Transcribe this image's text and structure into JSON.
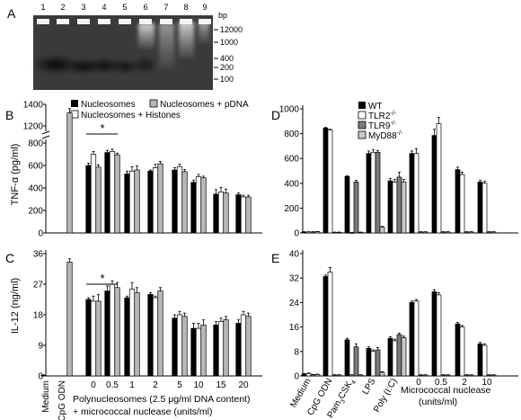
{
  "panel_labels": [
    "A",
    "B",
    "C",
    "D",
    "E"
  ],
  "colors": {
    "black": "#000000",
    "white": "#ffffff",
    "gray": "#b8b8b8",
    "dark_gray": "#7a7a7a",
    "light_gray": "#c9c9c9",
    "gel_background": "#3a3a3a"
  },
  "gel": {
    "lane_numbers": [
      "1",
      "2",
      "3",
      "4",
      "5",
      "6",
      "7",
      "8",
      "9"
    ],
    "unit_label": "bp",
    "marker_labels": [
      "12000",
      "1000",
      "400",
      "200",
      "100"
    ]
  },
  "legend_b": {
    "nucleosomes": "Nucleosomes",
    "nucleosomes_pdna": "Nucleosomes + pDNA",
    "nucleosomes_histones": "Nucleosomes + Histones"
  },
  "legend_d": {
    "wt": "WT",
    "tlr2": "TLR2",
    "tlr9": "TLR9",
    "myd88": "MyD88",
    "ko_superscript": "-/-"
  },
  "significance_marker": "*",
  "left_x_axis": {
    "medium": "Medium",
    "cpg": "CpG ODN",
    "doses": [
      "0",
      "0.5",
      "1",
      "2",
      "5",
      "10",
      "15",
      "20"
    ],
    "caption_line1": "Polynucleosomes (2.5 μg/ml DNA content)",
    "caption_line2": "+ micrococcal nuclease (units/ml)"
  },
  "right_x_axis": {
    "medium": "Medium",
    "cpg": "CpG ODN",
    "pam_prefix": "Pam",
    "pam_sub": "3",
    "pam_suffix": "CSK",
    "pam_sub2": "4",
    "lps": "LPS",
    "polyic": "Poly (I:C)",
    "doses": [
      "0",
      "0.5",
      "2",
      "10"
    ],
    "caption_line1": "Micrococcal nuclease",
    "caption_line2": "(units/ml)"
  },
  "chart_data": [
    {
      "panel": "B",
      "type": "bar",
      "ylabel_prefix": "TNF-",
      "ylabel_greek": "α",
      "ylabel_suffix": " (pg/ml)",
      "ylim": [
        0,
        800
      ],
      "yticks": [
        0,
        200,
        400,
        600,
        800
      ],
      "axis_break": true,
      "upper_ticks": [
        1200,
        1400
      ],
      "categories": [
        "Medium",
        "CpG ODN",
        "0",
        "0.5",
        "1",
        "2",
        "5",
        "10",
        "15",
        "20"
      ],
      "series": [
        {
          "name": "Nucleosomes",
          "values": [
            null,
            null,
            600,
            715,
            525,
            550,
            560,
            450,
            345,
            340
          ],
          "errors": [
            null,
            null,
            20,
            20,
            25,
            10,
            20,
            20,
            40,
            15
          ]
        },
        {
          "name": "Nucleosomes + Histones",
          "values": [
            null,
            null,
            700,
            725,
            550,
            580,
            590,
            500,
            365,
            320
          ],
          "errors": [
            null,
            null,
            25,
            20,
            40,
            30,
            20,
            20,
            40,
            15
          ]
        },
        {
          "name": "Nucleosomes + pDNA",
          "values": [
            null,
            1320,
            585,
            695,
            560,
            615,
            545,
            490,
            355,
            320
          ],
          "errors": [
            null,
            40,
            20,
            15,
            35,
            20,
            20,
            15,
            35,
            15
          ]
        }
      ]
    },
    {
      "panel": "C",
      "type": "bar",
      "ylabel": "IL-12 (ng/ml)",
      "ylim": [
        0,
        36
      ],
      "yticks": [
        0,
        9,
        18,
        27,
        36
      ],
      "categories": [
        "Medium",
        "CpG ODN",
        "0",
        "0.5",
        "1",
        "2",
        "5",
        "10",
        "15",
        "20"
      ],
      "series": [
        {
          "name": "Nucleosomes",
          "values": [
            0.2,
            null,
            22.5,
            25,
            23,
            24,
            17,
            14,
            15,
            15.5
          ],
          "errors": [
            0.1,
            null,
            0.5,
            1.5,
            0.5,
            0.5,
            1,
            1.5,
            1,
            1
          ]
        },
        {
          "name": "Nucleosomes + Histones",
          "values": [
            null,
            null,
            22,
            27,
            25.5,
            23,
            18,
            14,
            16,
            18
          ],
          "errors": [
            null,
            null,
            1.5,
            1,
            2,
            0.5,
            1,
            1.5,
            1,
            1
          ]
        },
        {
          "name": "Nucleosomes + pDNA",
          "values": [
            null,
            33.5,
            22,
            26,
            24.5,
            25,
            17.5,
            15,
            16.5,
            17.5
          ],
          "errors": [
            null,
            1,
            2,
            1.5,
            1.5,
            1,
            1,
            1.5,
            1,
            1
          ]
        }
      ]
    },
    {
      "panel": "D",
      "type": "bar",
      "ylim": [
        0,
        1000
      ],
      "yticks": [
        0,
        200,
        400,
        600,
        800,
        1000
      ],
      "categories": [
        "Medium",
        "CpG ODN",
        "Pam3CSK4",
        "LPS",
        "Poly (I:C)",
        "0",
        "0.5",
        "2",
        "10"
      ],
      "series": [
        {
          "name": "WT",
          "values": [
            8,
            845,
            455,
            640,
            420,
            640,
            785,
            510,
            410
          ],
          "errors": [
            2,
            5,
            5,
            20,
            20,
            20,
            50,
            20,
            15
          ]
        },
        {
          "name": "TLR2-/-",
          "values": [
            8,
            830,
            3,
            650,
            410,
            640,
            880,
            470,
            400
          ],
          "errors": [
            2,
            5,
            2,
            20,
            20,
            40,
            50,
            20,
            15
          ]
        },
        {
          "name": "TLR9-/-",
          "values": [
            8,
            5,
            410,
            650,
            450,
            8,
            8,
            8,
            8
          ],
          "errors": [
            2,
            2,
            15,
            15,
            40,
            2,
            2,
            2,
            2
          ]
        },
        {
          "name": "MyD88-/-",
          "values": [
            10,
            5,
            5,
            48,
            410,
            8,
            8,
            8,
            8
          ],
          "errors": [
            2,
            2,
            2,
            5,
            20,
            2,
            2,
            2,
            2
          ]
        }
      ]
    },
    {
      "panel": "E",
      "type": "bar",
      "ylim": [
        0,
        40
      ],
      "yticks": [
        0,
        8,
        16,
        24,
        32,
        40
      ],
      "categories": [
        "Medium",
        "CpG ODN",
        "Pam3CSK4",
        "LPS",
        "Poly (I:C)",
        "0",
        "0.5",
        "2",
        "10"
      ],
      "series": [
        {
          "name": "WT",
          "values": [
            0.6,
            32.5,
            11.8,
            9,
            12.3,
            24,
            27.5,
            17,
            10.5
          ],
          "errors": [
            0.2,
            0.5,
            0.5,
            0.5,
            0.5,
            0.5,
            0.7,
            0.5,
            0.5
          ]
        },
        {
          "name": "TLR2-/-",
          "values": [
            0.8,
            34,
            0.3,
            8,
            11.5,
            24.5,
            26.5,
            16,
            10
          ],
          "errors": [
            0.2,
            1.5,
            0.1,
            0.5,
            0.5,
            0.5,
            0.7,
            0.5,
            0.5
          ]
        },
        {
          "name": "TLR9-/-",
          "values": [
            0.4,
            0.3,
            9.5,
            8.5,
            13.5,
            0.3,
            0.3,
            0.3,
            0.3
          ],
          "errors": [
            0.1,
            0.1,
            1,
            0.8,
            0.5,
            0.1,
            0.1,
            0.1,
            0.1
          ]
        },
        {
          "name": "MyD88-/-",
          "values": [
            0.5,
            0.3,
            0.3,
            1.2,
            12.5,
            0.3,
            0.3,
            0.3,
            0.3
          ],
          "errors": [
            0.1,
            0.1,
            0.1,
            0.2,
            0.5,
            0.1,
            0.1,
            0.1,
            0.1
          ]
        }
      ]
    }
  ]
}
